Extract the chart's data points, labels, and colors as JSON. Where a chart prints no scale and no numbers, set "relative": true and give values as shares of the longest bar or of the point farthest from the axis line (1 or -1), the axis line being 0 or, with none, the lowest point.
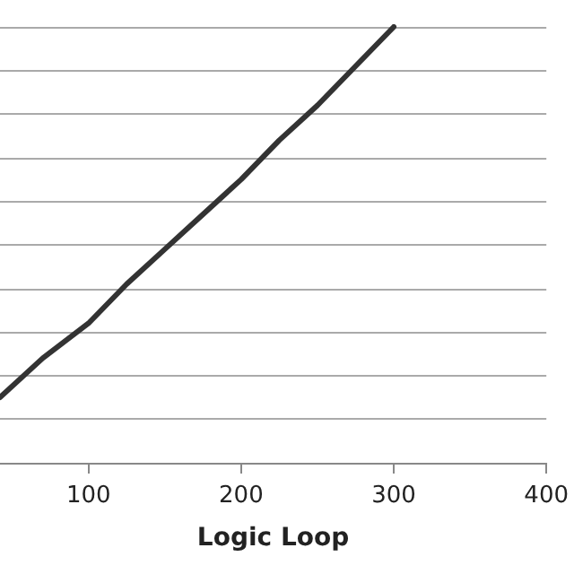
{
  "chart_data": {
    "type": "line",
    "xlabel": "Logic Loop",
    "relative": true,
    "x": [
      42,
      70,
      100,
      125,
      150,
      175,
      200,
      225,
      250,
      275,
      300
    ],
    "series": [
      {
        "color": "#333333",
        "values": [
          0.15,
          0.24,
          0.32,
          0.41,
          0.49,
          0.57,
          0.65,
          0.74,
          0.82,
          0.91,
          1.0
        ]
      }
    ],
    "xlim": [
      42,
      400
    ],
    "xticks": [
      100,
      200,
      300,
      400
    ],
    "grid": "y",
    "marker": "none",
    "line_style": "solid"
  }
}
